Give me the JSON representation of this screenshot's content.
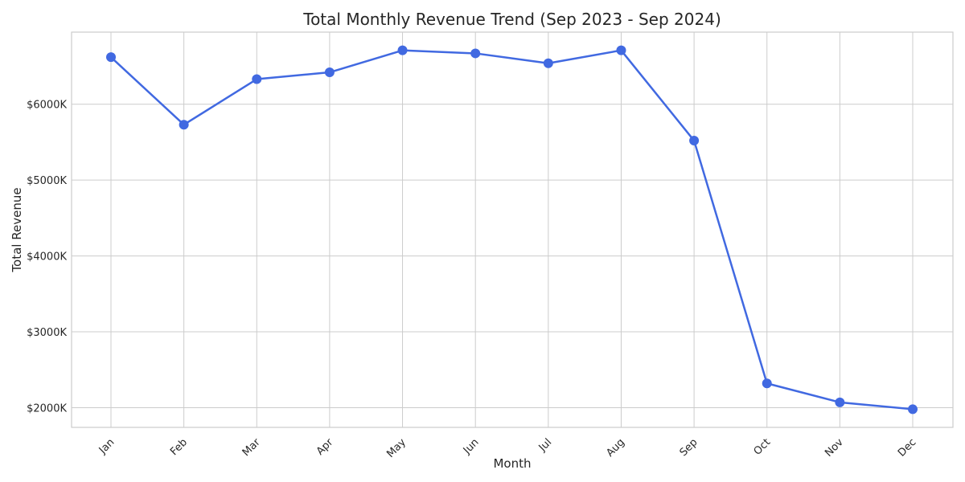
{
  "chart_data": {
    "type": "line",
    "title": "Total Monthly Revenue Trend (Sep 2023 - Sep 2024)",
    "xlabel": "Month",
    "ylabel": "Total Revenue",
    "categories": [
      "Jan",
      "Feb",
      "Mar",
      "Apr",
      "May",
      "Jun",
      "Jul",
      "Aug",
      "Sep",
      "Oct",
      "Nov",
      "Dec"
    ],
    "series": [
      {
        "name": "Total Revenue",
        "color": "#4169e1",
        "values": [
          6620,
          5730,
          6330,
          6420,
          6710,
          6670,
          6540,
          6710,
          5520,
          2320,
          2070,
          1980
        ]
      }
    ],
    "y_ticks": [
      2000,
      3000,
      4000,
      5000,
      6000
    ],
    "y_tick_labels": [
      "$2000K",
      "$3000K",
      "$4000K",
      "$5000K",
      "$6000K"
    ],
    "ylim": [
      1740,
      6950
    ],
    "grid": true,
    "x_tick_rotation": 45
  }
}
